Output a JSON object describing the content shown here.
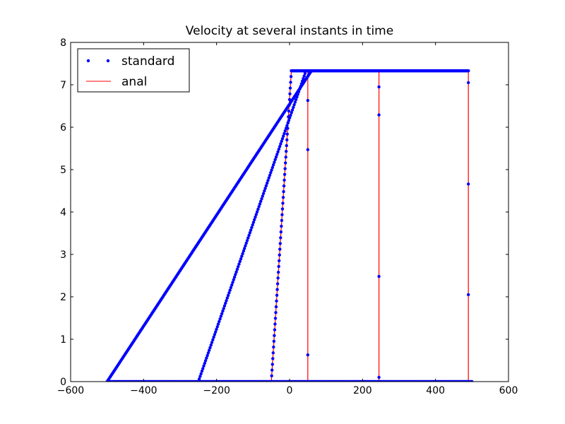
{
  "chart_data": {
    "type": "line",
    "title": "Velocity at several instants in time",
    "xlabel": "",
    "ylabel": "",
    "xlim": [
      -600,
      600
    ],
    "ylim": [
      0,
      8
    ],
    "xticks": [
      -600,
      -400,
      -200,
      0,
      200,
      400,
      600
    ],
    "yticks": [
      0,
      1,
      2,
      3,
      4,
      5,
      6,
      7,
      8
    ],
    "xtick_labels": [
      "−600",
      "−400",
      "−200",
      "0",
      "200",
      "400",
      "600"
    ],
    "ytick_labels": [
      "0",
      "1",
      "2",
      "3",
      "4",
      "5",
      "6",
      "7",
      "8"
    ],
    "grid": false,
    "legend": {
      "position": "top-left",
      "entries": [
        "standard",
        "anal"
      ]
    },
    "colors": {
      "standard": "#0000ff",
      "anal": "#ff0000"
    },
    "series": [
      {
        "name": "anal",
        "style": "line",
        "curves": [
          {
            "x": [
              -500,
              500
            ],
            "y": [
              0,
              0
            ]
          },
          {
            "x": [
              -50,
              5,
              50,
              50,
              500
            ],
            "y": [
              0,
              7.33,
              7.33,
              0,
              0
            ]
          },
          {
            "x": [
              -250,
              45,
              245,
              245,
              500
            ],
            "y": [
              0,
              7.33,
              7.33,
              0,
              0
            ]
          },
          {
            "x": [
              -500,
              60,
              490,
              490,
              500
            ],
            "y": [
              0,
              7.33,
              7.33,
              0,
              0
            ]
          }
        ]
      },
      {
        "name": "standard",
        "style": "markers",
        "curves": [
          {
            "x": [
              -50,
              5
            ],
            "y": [
              0,
              7.33
            ],
            "n": 55
          },
          {
            "x": [
              -250,
              45
            ],
            "y": [
              0,
              7.33
            ],
            "n": 120
          },
          {
            "x": [
              -500,
              60
            ],
            "y": [
              0,
              7.33
            ],
            "n": 220
          },
          {
            "x": [
              5,
              490
            ],
            "y": [
              7.33,
              7.33
            ],
            "n": 260
          },
          {
            "x": [
              -500,
              500
            ],
            "y": [
              0,
              0
            ],
            "n": 320
          }
        ],
        "extra_points": {
          "x": [
            50,
            50,
            50,
            50,
            245,
            245,
            245,
            245,
            245,
            490,
            490,
            490,
            490,
            490
          ],
          "y": [
            7.33,
            6.63,
            5.47,
            0.63,
            7.33,
            6.95,
            6.29,
            2.48,
            0.1,
            7.33,
            7.05,
            4.66,
            2.05,
            0.0
          ]
        }
      }
    ]
  }
}
